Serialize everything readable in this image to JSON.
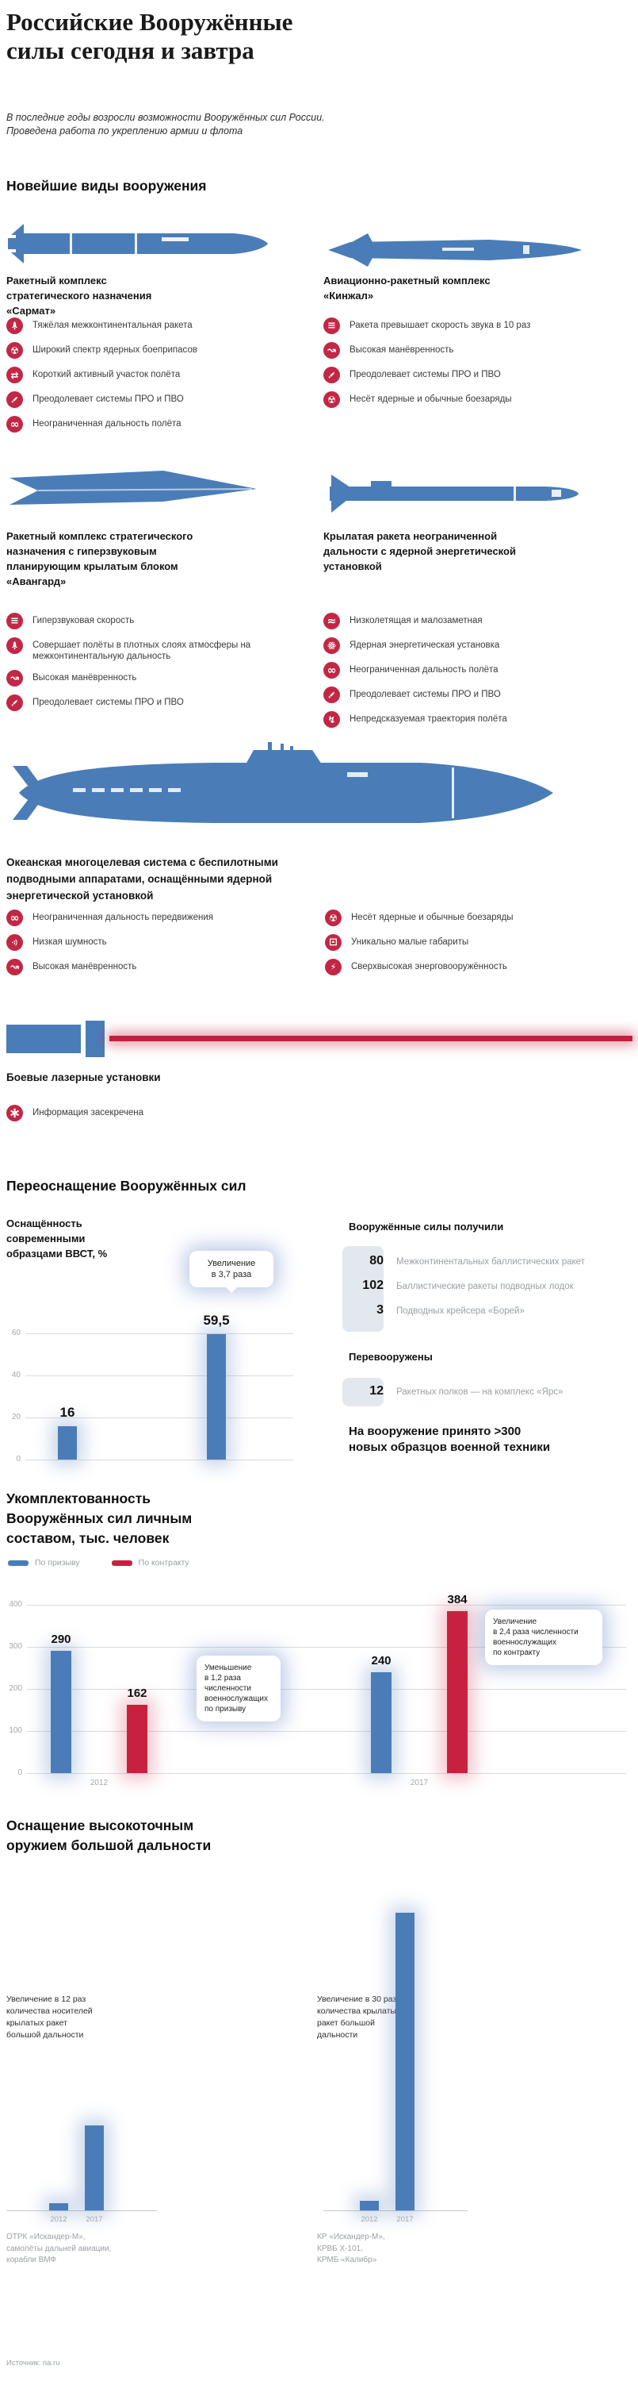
{
  "page": {
    "title": "Российские Вооружённые силы сегодня и завтра",
    "intro": "В последние годы возросли возможности Вооружённых сил России.\nПроведена работа по укреплению армии и флота",
    "source": "Источник: ria.ru"
  },
  "sections": {
    "newest": {
      "heading": "Новейшие виды вооружения"
    },
    "reequipment": {
      "heading": "Переоснащение Вооружённых сил",
      "received_heading": "Вооружённые силы получили",
      "received": [
        {
          "value": "80",
          "label": "Межконтинентальных баллистических ракет"
        },
        {
          "value": "102",
          "label": "Баллистические ракеты подводных лодок"
        },
        {
          "value": "3",
          "label": "Подводных крейсера «Борей»"
        }
      ],
      "rearmed_heading": "Перевооружены",
      "rearmed": [
        {
          "value": "12",
          "label": "Ракетных полков — на комплекс «Ярс»"
        }
      ],
      "note": "На вооружение принято >300\nновых образцов военной техники"
    },
    "personnel": {
      "heading": "Укомплектованность Вооружённых сил личным составом, тыс. человек"
    },
    "precision": {
      "heading": "Оснащение высокоточным оружием большой дальности"
    }
  },
  "weapons": [
    {
      "id": "sarmat",
      "title": "Ракетный комплекс стратегического назначения «Сармат»",
      "features": [
        {
          "icon": "rocket",
          "text": "Тяжёлая межконтинентальная ракета"
        },
        {
          "icon": "radiation",
          "text": "Широкий спектр ядерных боеприпасов"
        },
        {
          "icon": "short-path",
          "text": "Короткий активный участок полёта"
        },
        {
          "icon": "missile",
          "text": "Преодолевает системы ПРО и ПВО"
        },
        {
          "icon": "infinity",
          "text": "Неограниченная дальность полёта"
        }
      ]
    },
    {
      "id": "kinzhal",
      "title": "Авиационно-ракетный комплекс «Кинжал»",
      "features": [
        {
          "icon": "speed",
          "text": "Ракета превышает скорость звука в 10 раз"
        },
        {
          "icon": "maneuver",
          "text": "Высокая манёвренность"
        },
        {
          "icon": "missile",
          "text": "Преодолевает системы ПРО и ПВО"
        },
        {
          "icon": "radiation",
          "text": "Несёт ядерные и обычные боезаряды"
        }
      ]
    },
    {
      "id": "avangard",
      "title": "Ракетный комплекс стратегического назначения с гиперзвуковым планирующим крылатым блоком «Авангард»",
      "features": [
        {
          "icon": "speed",
          "text": "Гиперзвуковая скорость"
        },
        {
          "icon": "rocket",
          "text": "Совершает полёты в плотных слоях атмосферы на межконтинентальную дальность"
        },
        {
          "icon": "maneuver",
          "text": "Высокая манёвренность"
        },
        {
          "icon": "missile",
          "text": "Преодолевает системы ПРО и ПВО"
        }
      ]
    },
    {
      "id": "cruise-missile",
      "title": "Крылатая ракета неограниченной дальности с ядерной энергетической установкой",
      "features": [
        {
          "icon": "waves",
          "text": "Низколетящая и малозаметная"
        },
        {
          "icon": "atom",
          "text": "Ядерная энергетическая установка"
        },
        {
          "icon": "infinity",
          "text": "Неограниченная дальность полёта"
        },
        {
          "icon": "missile",
          "text": "Преодолевает системы ПРО и ПВО"
        },
        {
          "icon": "zigzag",
          "text": "Непредсказуемая траектория полёта"
        }
      ]
    },
    {
      "id": "ocean-system",
      "title": "Океанская многоцелевая система с беспилотными подводными аппаратами, оснащёнными ядерной энергетической установкой",
      "features": [
        {
          "icon": "infinity",
          "text": "Неограниченная дальность передвижения"
        },
        {
          "icon": "sound",
          "text": "Низкая шумность"
        },
        {
          "icon": "maneuver",
          "text": "Высокая манёвренность"
        },
        {
          "icon": "radiation",
          "text": "Несёт ядерные и обычные боезаряды"
        },
        {
          "icon": "box",
          "text": "Уникально малые габариты"
        },
        {
          "icon": "energy",
          "text": "Сверхвысокая энерговооружённость"
        }
      ]
    },
    {
      "id": "laser",
      "title": "Боевые лазерные установки",
      "features": [
        {
          "icon": "asterisk",
          "text": "Информация засекречена"
        }
      ]
    }
  ],
  "chart_data": [
    {
      "id": "vvst",
      "type": "bar",
      "title": "Оснащённость\nсовременными\nобразцами ВВСТ, %",
      "values": [
        16,
        59.5
      ],
      "value_labels": [
        "16",
        "59,5"
      ],
      "ylim": [
        0,
        60
      ],
      "yticks": [
        0,
        20,
        40,
        60
      ],
      "annotation": "Увеличение\nв 3,7 раза",
      "bar_color": "#4a7db8"
    },
    {
      "id": "personnel",
      "type": "bar",
      "title": "Укомплектованность Вооружённых сил личным составом, тыс. человек",
      "categories": [
        "2012",
        "2017"
      ],
      "series": [
        {
          "name": "По призыву",
          "color": "#4a7db8",
          "values": [
            290,
            240
          ]
        },
        {
          "name": "По контракту",
          "color": "#c8213f",
          "values": [
            162,
            384
          ]
        }
      ],
      "ylim": [
        0,
        400
      ],
      "yticks": [
        0,
        100,
        200,
        300,
        400
      ],
      "legend_position": "top",
      "annotations": [
        {
          "text": "Уменьшение\nв 1,2 раза\nчисленности\nвоеннослужащих\nпо призыву"
        },
        {
          "text": "Увеличение\nв 2,4 раза численности\nвоеннослужащих\nпо контракту"
        }
      ]
    },
    {
      "id": "cruise-carriers",
      "type": "bar",
      "categories": [
        "2012",
        "2017"
      ],
      "values_relative": [
        1,
        12
      ],
      "annotation": "Увеличение в 12 раз\nколичества носителей\nкрылатых ракет\nбольшой дальности",
      "footnote": "ОТРК «Искандер-М»,\nсамолёты дальней авиации,\nкорабли ВМФ",
      "bar_color": "#4a7db8"
    },
    {
      "id": "cruise-missiles",
      "type": "bar",
      "categories": [
        "2012",
        "2017"
      ],
      "values_relative": [
        1,
        30
      ],
      "annotation": "Увеличение в 30 раз\nколичества крылатых\nракет большой\nдальности",
      "footnote": "КР «Искандер-М»,\nКРВБ Х-101,\nКРМБ «Калибр»",
      "bar_color": "#4a7db8"
    }
  ]
}
